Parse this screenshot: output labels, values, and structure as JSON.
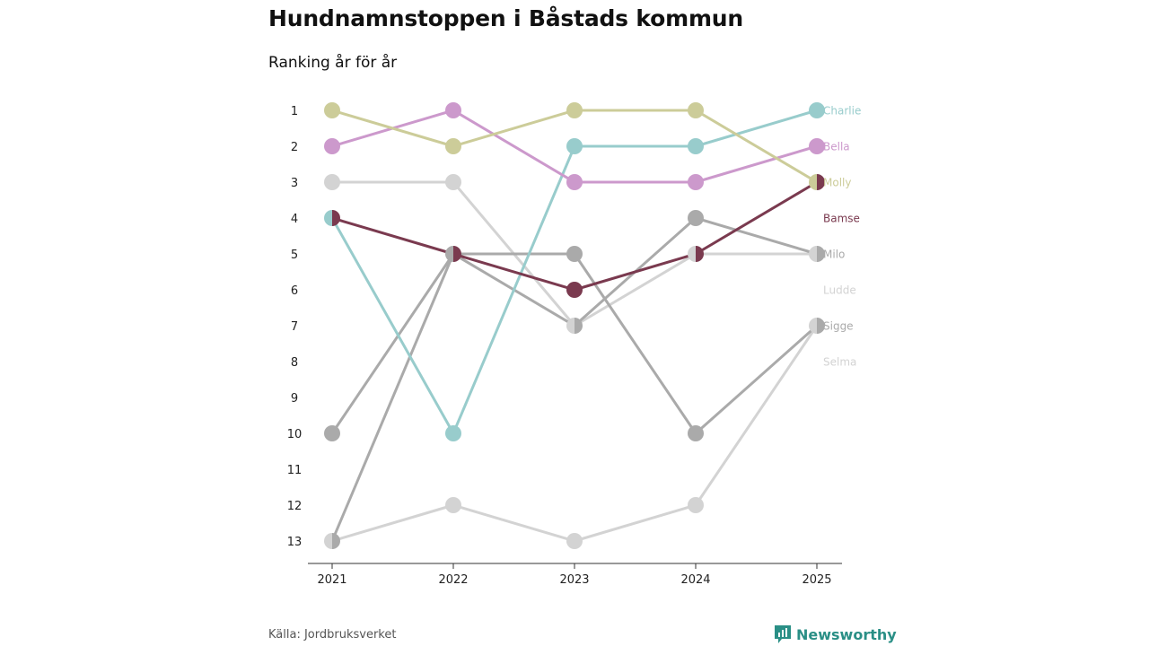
{
  "title": "Hundnamnstoppen i Båstads kommun",
  "subtitle": "Ranking år för år",
  "source": "Källa: Jordbruksverket",
  "brand": "Newsworthy",
  "colors": {
    "brand": "#2a8f86"
  },
  "chart_data": {
    "type": "line",
    "title": "Hundnamnstoppen i Båstads kommun",
    "subtitle": "Ranking år för år",
    "x": [
      "2021",
      "2022",
      "2023",
      "2024",
      "2025"
    ],
    "y_ticks": [
      "1",
      "2",
      "3",
      "4",
      "5",
      "6",
      "7",
      "8",
      "9",
      "10",
      "11",
      "12",
      "13"
    ],
    "ylim": [
      1,
      13
    ],
    "y_inverted": true,
    "grid": false,
    "legend": "right-end labels",
    "series": [
      {
        "name": "Selma",
        "color": "#d3d3d3",
        "values": [
          13,
          12,
          13,
          12,
          7
        ]
      },
      {
        "name": "Ludde",
        "color": "#d3d3d3",
        "values": [
          3,
          3,
          7,
          5,
          5
        ]
      },
      {
        "name": "Sigge",
        "color": "#aaaaaa",
        "values": [
          13,
          5,
          7,
          4,
          5
        ]
      },
      {
        "name": "Milo",
        "color": "#aaaaaa",
        "values": [
          10,
          5,
          5,
          10,
          7
        ]
      },
      {
        "name": "Charlie",
        "color": "#98cccc",
        "values": [
          4,
          10,
          2,
          2,
          1
        ]
      },
      {
        "name": "Bella",
        "color": "#cc99cc",
        "values": [
          2,
          1,
          3,
          3,
          2
        ]
      },
      {
        "name": "Molly",
        "color": "#cccc99",
        "values": [
          1,
          2,
          1,
          1,
          3
        ]
      },
      {
        "name": "Bamse",
        "color": "#7a3a4f",
        "values": [
          4,
          5,
          6,
          5,
          3
        ]
      }
    ],
    "end_labels": [
      {
        "name": "Charlie",
        "color": "#98cccc",
        "rank": 1
      },
      {
        "name": "Bella",
        "color": "#cc99cc",
        "rank": 2
      },
      {
        "name": "Molly",
        "color": "#cccc99",
        "rank": 3
      },
      {
        "name": "Bamse",
        "color": "#7a3a4f",
        "rank": 4
      },
      {
        "name": "Milo",
        "color": "#aaaaaa",
        "rank": 5
      },
      {
        "name": "Ludde",
        "color": "#d3d3d3",
        "rank": 6
      },
      {
        "name": "Sigge",
        "color": "#aaaaaa",
        "rank": 7
      },
      {
        "name": "Selma",
        "color": "#d3d3d3",
        "rank": 8
      }
    ]
  }
}
